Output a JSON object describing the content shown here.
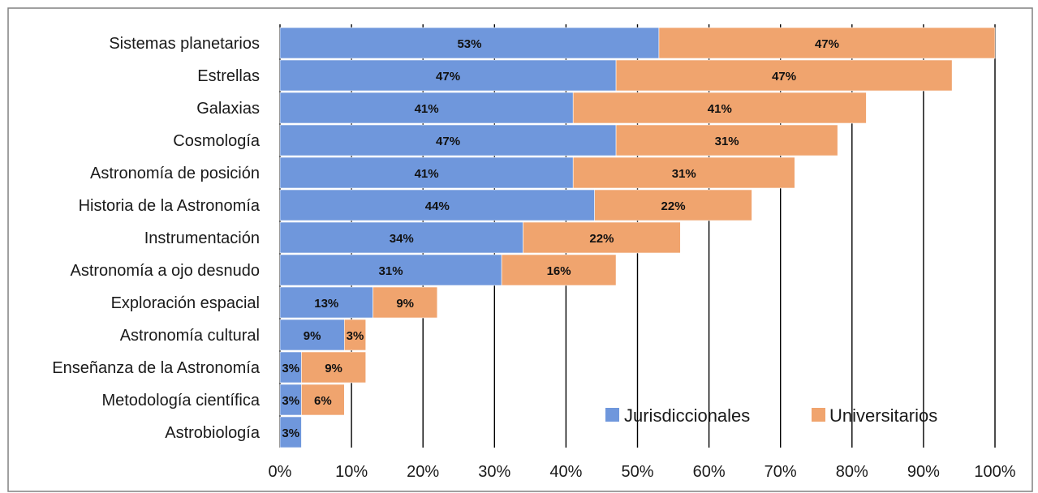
{
  "chart_data": {
    "type": "bar",
    "orientation": "horizontal",
    "stacked": true,
    "categories": [
      "Sistemas planetarios",
      "Estrellas",
      "Galaxias",
      "Cosmología",
      "Astronomía de posición",
      "Historia de la Astronomía",
      "Instrumentación",
      "Astronomía a ojo desnudo",
      "Exploración espacial",
      "Astronomía cultural",
      "Enseñanza de la Astronomía",
      "Metodología científica",
      "Astrobiología"
    ],
    "series": [
      {
        "name": "Jurisdiccionales",
        "color": "#6f97dc",
        "values": [
          53,
          47,
          41,
          47,
          41,
          44,
          34,
          31,
          13,
          9,
          3,
          3,
          3
        ],
        "labels": [
          "53%",
          "47%",
          "41%",
          "47%",
          "41%",
          "44%",
          "34%",
          "31%",
          "13%",
          "9%",
          "3%",
          "3%",
          "3%"
        ]
      },
      {
        "name": "Universitarios",
        "color": "#f0a46e",
        "values": [
          47,
          47,
          41,
          31,
          31,
          22,
          22,
          16,
          9,
          3,
          9,
          6,
          0
        ],
        "labels": [
          "47%",
          "47%",
          "41%",
          "31%",
          "31%",
          "22%",
          "22%",
          "16%",
          "9%",
          "3%",
          "9%",
          "6%",
          ""
        ]
      }
    ],
    "xlim": [
      0,
      100
    ],
    "xticks": [
      "0%",
      "10%",
      "20%",
      "30%",
      "40%",
      "50%",
      "60%",
      "70%",
      "80%",
      "90%",
      "100%"
    ],
    "grid": "vertical",
    "legend": "bottom-right",
    "title": "",
    "xlabel": "",
    "ylabel": ""
  }
}
